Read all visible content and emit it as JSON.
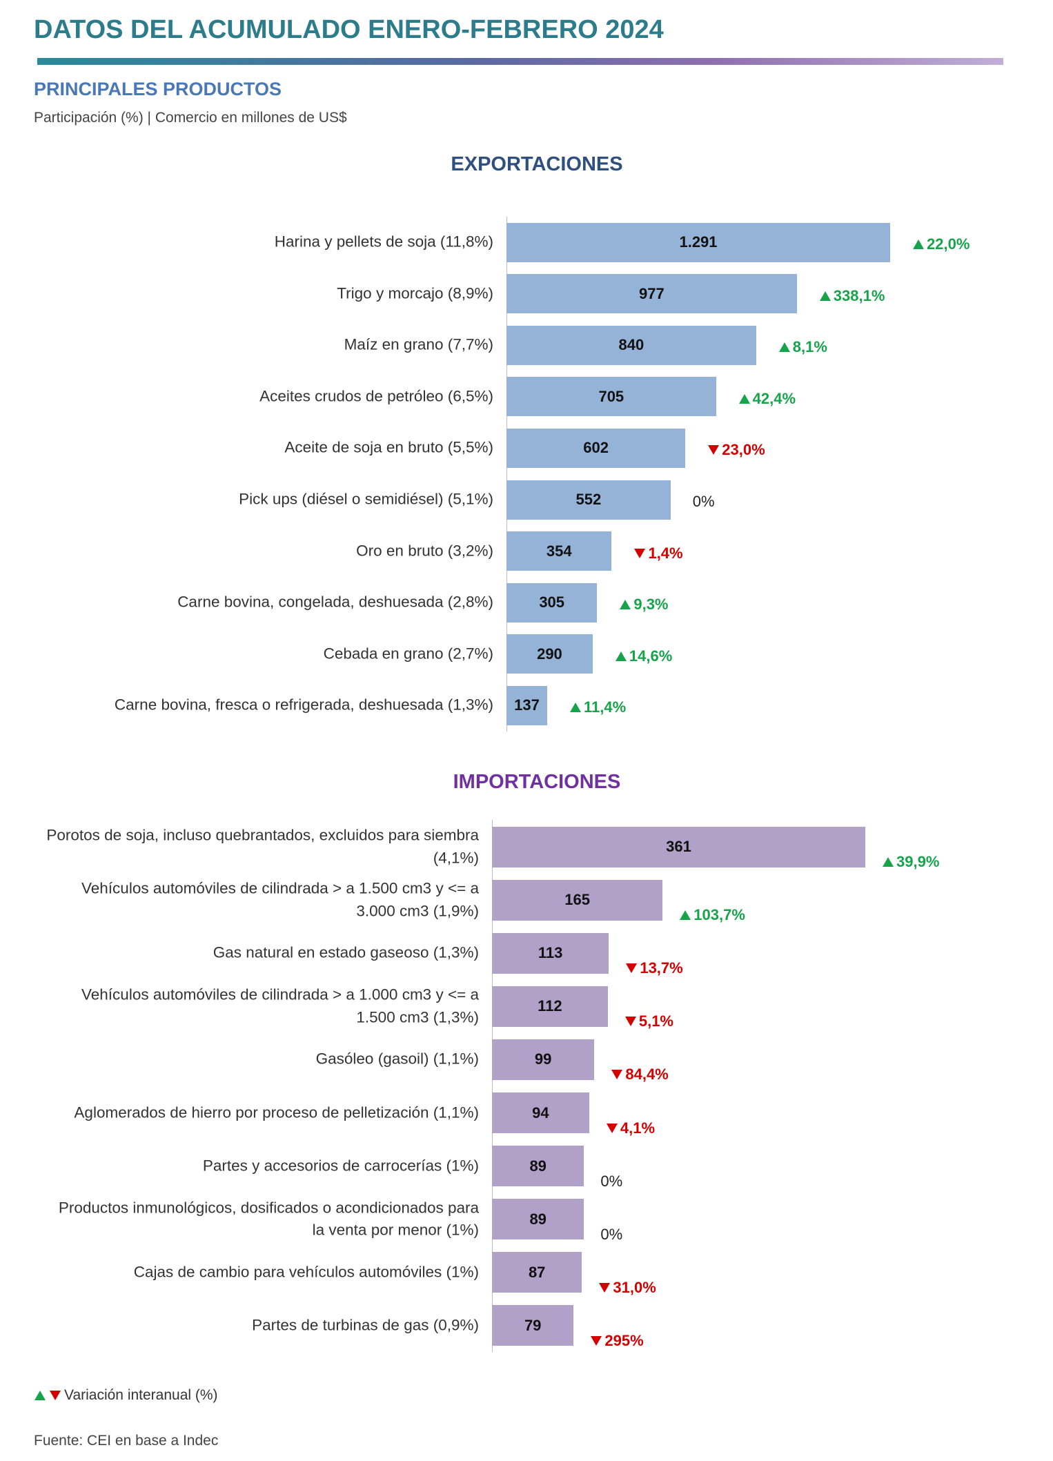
{
  "header": {
    "title": "DATOS DEL ACUMULADO ENERO-FEBRERO 2024",
    "section": "PRINCIPALES PRODUCTOS",
    "subtitle": "Participación (%) | Comercio en millones de US$"
  },
  "chart_data": [
    {
      "type": "bar",
      "orientation": "horizontal",
      "title": "EXPORTACIONES",
      "color": "#95b3d7",
      "title_color": "#2f4f7f",
      "categories": [
        "Harina y pellets de soja (11,8%)",
        "Trigo y morcajo (8,9%)",
        "Maíz en grano (7,7%)",
        "Aceites crudos de petróleo (6,5%)",
        "Aceite de soja en bruto (5,5%)",
        "Pick ups (diésel o semidiésel) (5,1%)",
        "Oro en bruto (3,2%)",
        "Carne bovina, congelada, deshuesada (2,8%)",
        "Cebada en grano (2,7%)",
        "Carne bovina, fresca o refrigerada, deshuesada (1,3%)"
      ],
      "values": [
        1291,
        977,
        840,
        705,
        602,
        552,
        354,
        305,
        290,
        137
      ],
      "value_labels": [
        "1.291",
        "977",
        "840",
        "705",
        "602",
        "552",
        "354",
        "305",
        "290",
        "137"
      ],
      "variation": [
        22.0,
        338.1,
        8.1,
        42.4,
        -23.0,
        0,
        -1.4,
        9.3,
        14.6,
        11.4
      ],
      "variation_labels": [
        "22,0%",
        "338,1%",
        "8,1%",
        "42,4%",
        "23,0%",
        "0%",
        "1,4%",
        "9,3%",
        "14,6%",
        "11,4%"
      ]
    },
    {
      "type": "bar",
      "orientation": "horizontal",
      "title": "IMPORTACIONES",
      "color": "#b1a0c7",
      "title_color": "#7030a0",
      "categories": [
        "Porotos de soja, incluso quebrantados, excluidos para siembra (4,1%)",
        "Vehículos automóviles de cilindrada  > a 1.500 cm3 y <= a 3.000 cm3 (1,9%)",
        "Gas natural en estado gaseoso (1,3%)",
        "Vehículos automóviles de cilindrada  > a 1.000 cm3 y <= a 1.500 cm3 (1,3%)",
        "Gasóleo (gasoil) (1,1%)",
        "Aglomerados de hierro por proceso de pelletización (1,1%)",
        "Partes y accesorios de carrocerías (1%)",
        "Productos inmunológicos, dosificados o acondicionados para la venta por menor (1%)",
        "Cajas de cambio para vehículos automóviles (1%)",
        "Partes de turbinas de gas (0,9%)"
      ],
      "values": [
        361,
        165,
        113,
        112,
        99,
        94,
        89,
        89,
        87,
        79
      ],
      "value_labels": [
        "361",
        "165",
        "113",
        "112",
        "99",
        "94",
        "89",
        "89",
        "87",
        "79"
      ],
      "variation": [
        39.9,
        103.7,
        -13.7,
        -5.1,
        -84.4,
        -4.1,
        0,
        0,
        -31.0,
        -295
      ],
      "variation_labels": [
        "39,9%",
        "103,7%",
        "13,7%",
        "5,1%",
        "84,4%",
        "4,1%",
        "0%",
        "0%",
        "31,0%",
        "295%"
      ]
    }
  ],
  "legend": "Variación interanual (%)",
  "source": "Fuente: CEI en base a Indec"
}
